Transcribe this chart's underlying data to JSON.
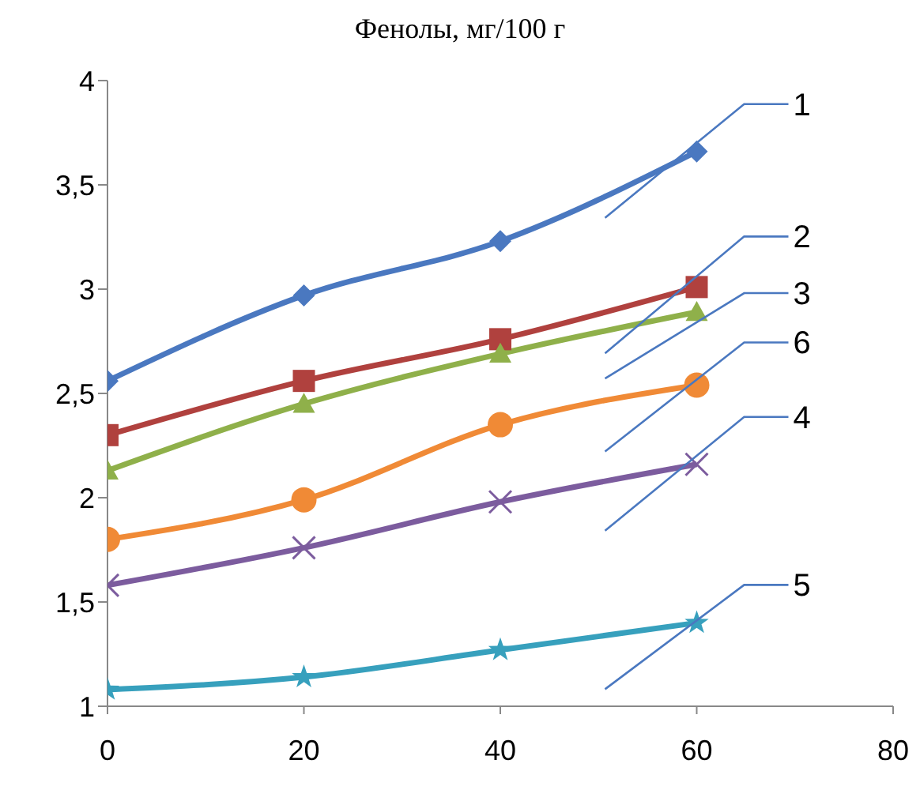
{
  "chart_data": {
    "type": "line",
    "title": "Фенолы, мг/100 г",
    "x": [
      0,
      20,
      40,
      60
    ],
    "series": [
      {
        "name": "1",
        "color": "#4a78c0",
        "marker": "diamond",
        "values": [
          2.56,
          2.97,
          3.23,
          3.66
        ]
      },
      {
        "name": "2",
        "color": "#b0413e",
        "marker": "square",
        "values": [
          2.3,
          2.56,
          2.76,
          3.01
        ]
      },
      {
        "name": "3",
        "color": "#8fb04a",
        "marker": "triangle",
        "values": [
          2.13,
          2.45,
          2.69,
          2.89
        ]
      },
      {
        "name": "6",
        "color": "#f08a36",
        "marker": "circle",
        "values": [
          1.8,
          1.99,
          2.35,
          2.54
        ]
      },
      {
        "name": "4",
        "color": "#7c5c9e",
        "marker": "cross",
        "values": [
          1.58,
          1.76,
          1.98,
          2.16
        ]
      },
      {
        "name": "5",
        "color": "#37a0bd",
        "marker": "star",
        "values": [
          1.08,
          1.14,
          1.27,
          1.4
        ]
      }
    ],
    "xlim": [
      0,
      80
    ],
    "xticks": [
      0,
      20,
      40,
      60,
      80
    ],
    "ylim": [
      1,
      4
    ],
    "yticks": [
      1,
      {
        "value": 1.5,
        "label": "1,5"
      },
      2,
      {
        "value": 2.5,
        "label": "2,5"
      },
      3,
      {
        "value": 3.5,
        "label": "3,5"
      },
      4
    ],
    "grid": false,
    "legend": false,
    "line_style": "solid"
  }
}
